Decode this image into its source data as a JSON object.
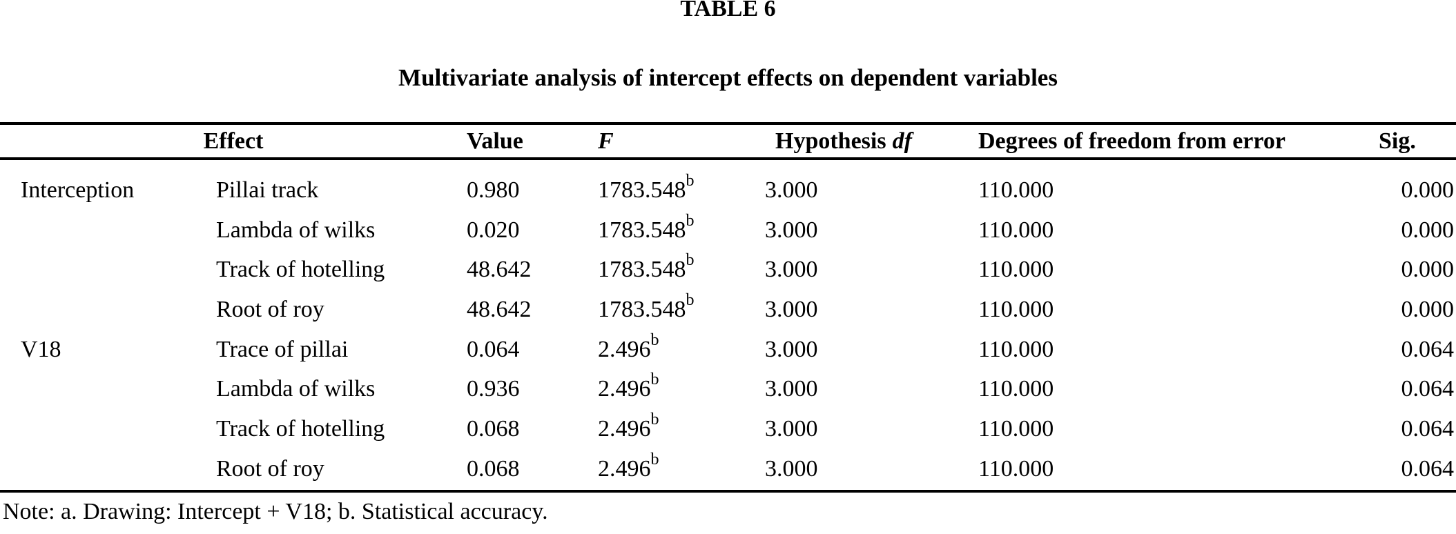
{
  "page": {
    "table_label": "TABLE 6",
    "title": "Multivariate analysis of intercept effects on dependent variables",
    "note": "Note: a. Drawing: Intercept + V18; b. Statistical accuracy."
  },
  "columns": {
    "effect": "Effect",
    "value": "Value",
    "f": "F",
    "hyp_word": "Hypothesis",
    "hyp_df": "df",
    "df_error": "Degrees of freedom from error",
    "sig": "Sig."
  },
  "rows": [
    {
      "group": "Interception",
      "effect": "Pillai track",
      "value": "0.980",
      "f": "1783.548",
      "f_sup": "b",
      "hyp_df": "3.000",
      "df_error": "110.000",
      "sig": "0.000"
    },
    {
      "group": "",
      "effect": "Lambda of wilks",
      "value": "0.020",
      "f": "1783.548",
      "f_sup": "b",
      "hyp_df": "3.000",
      "df_error": "110.000",
      "sig": "0.000"
    },
    {
      "group": "",
      "effect": "Track of hotelling",
      "value": "48.642",
      "f": "1783.548",
      "f_sup": "b",
      "hyp_df": "3.000",
      "df_error": "110.000",
      "sig": "0.000"
    },
    {
      "group": "",
      "effect": "Root of roy",
      "value": "48.642",
      "f": "1783.548",
      "f_sup": "b",
      "hyp_df": "3.000",
      "df_error": "110.000",
      "sig": "0.000"
    },
    {
      "group": "V18",
      "effect": "Trace of pillai",
      "value": "0.064",
      "f": "2.496",
      "f_sup": "b",
      "hyp_df": "3.000",
      "df_error": "110.000",
      "sig": "0.064"
    },
    {
      "group": "",
      "effect": "Lambda of wilks",
      "value": "0.936",
      "f": "2.496",
      "f_sup": "b",
      "hyp_df": "3.000",
      "df_error": "110.000",
      "sig": "0.064"
    },
    {
      "group": "",
      "effect": "Track of hotelling",
      "value": "0.068",
      "f": "2.496",
      "f_sup": "b",
      "hyp_df": "3.000",
      "df_error": "110.000",
      "sig": "0.064"
    },
    {
      "group": "",
      "effect": "Root of roy",
      "value": "0.068",
      "f": "2.496",
      "f_sup": "b",
      "hyp_df": "3.000",
      "df_error": "110.000",
      "sig": "0.064"
    }
  ]
}
